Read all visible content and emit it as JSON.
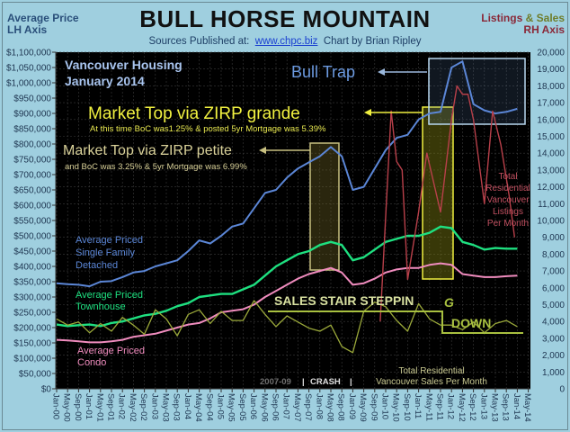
{
  "header": {
    "title": "BULL HORSE MOUNTAIN",
    "sources_prefix": "Sources Published at:",
    "sources_link": "www.chpc.biz",
    "credit": "Chart by Brian Ripley",
    "left_axis_label_1": "Average Price",
    "left_axis_label_2": "LH Axis",
    "right_axis_label_listings": "Listings",
    "right_axis_label_amp": "&",
    "right_axis_label_sales": "Sales",
    "right_axis_label_2": "RH Axis"
  },
  "annotations": {
    "region_1": "Vancouver Housing",
    "region_2": "January 2014",
    "bull_trap": "Bull Trap",
    "zirp_grande": "Market Top via ZIRP grande",
    "zirp_grande_note": "At this time BoC was1.25% & posted 5yr Mortgage was 5.39%",
    "zirp_petite": "Market Top via ZIRP petite",
    "zirp_petite_note": "and BoC was 3.25% & 5yr Mortgage was 6.99%",
    "detached_1": "Average Priced",
    "detached_2": "Single Family",
    "detached_3": "Detached",
    "townhouse_1": "Average Priced",
    "townhouse_2": "Townhouse",
    "condo_1": "Average Priced",
    "condo_2": "Condo",
    "listings_1": "Total",
    "listings_2": "Residential",
    "listings_3": "Vancouver",
    "listings_4": "Listings",
    "listings_5": "Per Month",
    "sales_stair": "SALES STAIR STEPPIN",
    "sales_stair_g": "G",
    "sales_down": "DOWN",
    "sales_1": "Total Residential",
    "sales_2": "Vancouver Sales Per Month",
    "crash_years": "2007-09",
    "crash_sep": "|",
    "crash_label": "CRASH",
    "crash_sep2": "|"
  },
  "colors": {
    "background": "#9fcfdf",
    "plot_bg": "#000000",
    "detached": "#5b86d6",
    "townhouse": "#1ee080",
    "condo": "#f08cbe",
    "listings": "#b8404a",
    "sales": "#9aa83a",
    "zirp_grande": "#f0f040",
    "zirp_petite": "#c8c080",
    "bull_trap_box": "#b8d8f0"
  },
  "chart_data": {
    "type": "line",
    "title": "BULL HORSE MOUNTAIN",
    "subtitle": "Vancouver Housing January 2014",
    "xlabel": "",
    "ylabel_left": "Average Price (LH Axis)",
    "ylabel_right": "Listings & Sales (RH Axis)",
    "ylim_left": [
      0,
      1100000
    ],
    "ylim_right": [
      0,
      20000
    ],
    "grid": true,
    "y_left_ticks": [
      "$0",
      "$50,000",
      "$100,000",
      "$150,000",
      "$200,000",
      "$250,000",
      "$300,000",
      "$350,000",
      "$400,000",
      "$450,000",
      "$500,000",
      "$550,000",
      "$600,000",
      "$650,000",
      "$700,000",
      "$750,000",
      "$800,000",
      "$850,000",
      "$900,000",
      "$950,000",
      "$1,000,000",
      "$1,050,000",
      "$1,100,000"
    ],
    "y_right_ticks": [
      "0",
      "1,000",
      "2,000",
      "3,000",
      "4,000",
      "5,000",
      "6,000",
      "7,000",
      "8,000",
      "9,000",
      "10,000",
      "11,000",
      "12,000",
      "13,000",
      "14,000",
      "15,000",
      "16,000",
      "17,000",
      "18,000",
      "19,000",
      "20,000"
    ],
    "x_ticks": [
      "Jan-00",
      "May-00",
      "Sep-00",
      "Jan-01",
      "May-01",
      "Sep-01",
      "Jan-02",
      "May-02",
      "Sep-02",
      "Jan-03",
      "May-03",
      "Sep-03",
      "Jan-04",
      "May-04",
      "Sep-04",
      "Jan-05",
      "May-05",
      "Sep-05",
      "Jan-06",
      "May-06",
      "Sep-06",
      "Jan-07",
      "May-07",
      "Sep-07",
      "Jan-08",
      "May-08",
      "Sep-08",
      "Jan-09",
      "May-09",
      "Sep-09",
      "Jan-10",
      "May-10",
      "Sep-10",
      "Jan-11",
      "May-11",
      "Sep-11",
      "Jan-12",
      "May-12",
      "Sep-12",
      "Jan-13",
      "May-13",
      "Sep-13",
      "Jan-14",
      "May-14"
    ],
    "x": [
      "Jan-00",
      "May-00",
      "Sep-00",
      "Jan-01",
      "May-01",
      "Sep-01",
      "Jan-02",
      "May-02",
      "Sep-02",
      "Jan-03",
      "May-03",
      "Sep-03",
      "Jan-04",
      "May-04",
      "Sep-04",
      "Jan-05",
      "May-05",
      "Sep-05",
      "Jan-06",
      "May-06",
      "Sep-06",
      "Jan-07",
      "May-07",
      "Sep-07",
      "Jan-08",
      "May-08",
      "Sep-08",
      "Jan-09",
      "May-09",
      "Sep-09",
      "Jan-10",
      "May-10",
      "Sep-10",
      "Jan-11",
      "May-11",
      "Sep-11",
      "Jan-12",
      "May-12",
      "Sep-12",
      "Jan-13",
      "May-13",
      "Sep-13",
      "Jan-14"
    ],
    "series": [
      {
        "name": "Average Priced Single Family Detached",
        "axis": "left",
        "values": [
          345000,
          342000,
          340000,
          335000,
          350000,
          352000,
          365000,
          380000,
          385000,
          400000,
          410000,
          420000,
          450000,
          485000,
          475000,
          500000,
          530000,
          540000,
          590000,
          640000,
          650000,
          690000,
          720000,
          740000,
          760000,
          790000,
          760000,
          650000,
          660000,
          720000,
          780000,
          820000,
          830000,
          880000,
          900000,
          905000,
          1050000,
          1070000,
          930000,
          910000,
          900000,
          905000,
          915000
        ]
      },
      {
        "name": "Average Priced Townhouse",
        "axis": "left",
        "values": [
          210000,
          205000,
          208000,
          210000,
          205000,
          215000,
          220000,
          230000,
          240000,
          245000,
          255000,
          270000,
          280000,
          300000,
          305000,
          310000,
          310000,
          325000,
          340000,
          370000,
          400000,
          420000,
          440000,
          450000,
          470000,
          480000,
          470000,
          420000,
          430000,
          455000,
          480000,
          490000,
          500000,
          500000,
          510000,
          530000,
          525000,
          480000,
          470000,
          455000,
          460000,
          458000,
          458000
        ]
      },
      {
        "name": "Average Priced Condo",
        "axis": "left",
        "values": [
          160000,
          158000,
          155000,
          152000,
          152000,
          155000,
          160000,
          170000,
          175000,
          180000,
          190000,
          200000,
          210000,
          215000,
          230000,
          250000,
          255000,
          260000,
          275000,
          300000,
          320000,
          340000,
          360000,
          375000,
          385000,
          395000,
          380000,
          340000,
          345000,
          360000,
          380000,
          390000,
          395000,
          395000,
          405000,
          410000,
          405000,
          375000,
          370000,
          365000,
          365000,
          368000,
          370000
        ]
      },
      {
        "name": "Total Residential Vancouver Listings Per Month",
        "axis": "right",
        "x": [
          "Nov-09",
          "Mar-10",
          "May-10",
          "Jul-10",
          "Sep-10",
          "Jan-11",
          "Apr-11",
          "Sep-11",
          "Jan-12",
          "Mar-12",
          "May-12",
          "Jul-12",
          "Sep-12",
          "Jan-13",
          "Apr-13",
          "Jul-13",
          "Oct-13",
          "Dec-13"
        ],
        "values": [
          4000,
          16500,
          13500,
          13000,
          6500,
          10500,
          14000,
          10500,
          16000,
          18000,
          17500,
          17500,
          16000,
          11000,
          16500,
          14500,
          11500,
          9000
        ]
      },
      {
        "name": "Total Residential Vancouver Sales Per Month",
        "axis": "right",
        "values": [
          2800,
          2400,
          2600,
          1900,
          2500,
          2000,
          2900,
          2400,
          1800,
          3400,
          2800,
          1700,
          3100,
          3400,
          2500,
          3300,
          2700,
          2700,
          4000,
          3100,
          2300,
          3000,
          2600,
          2200,
          2000,
          2400,
          1000,
          600,
          3300,
          3900,
          3600,
          2700,
          2000,
          3800,
          2800,
          2400,
          2400,
          2100,
          2600,
          1900,
          2500,
          2700,
          2300
        ]
      }
    ]
  }
}
